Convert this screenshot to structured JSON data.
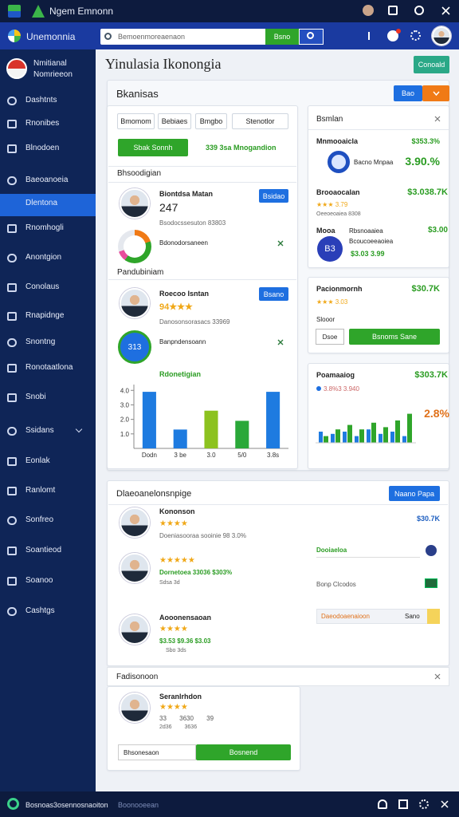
{
  "top_bar": {
    "title": "Ngem Emnonn"
  },
  "header": {
    "brand": "Unemonnia",
    "search_placeholder": "Bemoenmoreaenaon",
    "search_button": "Bsno"
  },
  "sidebar": {
    "profile": {
      "name": "Nmitianal",
      "subtitle": "Nomrieeon"
    },
    "items": [
      "Dashtnts",
      "Rnonibes",
      "Blnodoen",
      "Baeoanoeia",
      "Dlentona",
      "Rnomhogli",
      "Anontgion",
      "Conolaus",
      "Rnapidnge",
      "Snontng",
      "Ronotaatlona",
      "Snobi",
      "Ssidans",
      "Eonlak",
      "Ranlomt",
      "Sonfreo",
      "Soantieod",
      "Soanoo",
      "Cashtgs"
    ]
  },
  "main": {
    "title": "Yinulasia Ikonongia",
    "button": "Conoald"
  },
  "section": {
    "title": "Bkanisas",
    "button_primary": "Bao",
    "filters": [
      "Bmomom",
      "Bebiaes",
      "Bmgbo",
      "Stenotlor"
    ],
    "action_button": "Sbak Sonnh",
    "action_text": "339 3sa Mnogandion",
    "group1": {
      "title": "Bhsoodigian",
      "name": "Biontdsa Matan",
      "value": "247",
      "button": "Bsidao",
      "meta": "Bsodocssesuton 83803",
      "row_label": "Bdonodorsaneen"
    },
    "group2": {
      "title": "Pandubiniam",
      "name": "Roecoo Isntan",
      "rating": "94★★★",
      "button": "Bsano",
      "meta": "Danosonsorasacs 33969",
      "badge": "313",
      "row_label": "Banpndensoann"
    },
    "bar_chart": {
      "title": "Rdonetigian",
      "categories": [
        "Dodn",
        "3 be",
        "3.0",
        "5/0",
        "3.8s"
      ],
      "values": [
        3.9,
        1.3,
        2.6,
        1.9,
        3.9
      ],
      "colors": [
        "#1e7be0",
        "#1e7be0",
        "#8cc21f",
        "#2aa839",
        "#1e7be0"
      ],
      "ylim": [
        0,
        4.4
      ],
      "yticks": [
        {
          "value": 1,
          "label": "1.0"
        },
        {
          "value": 2,
          "label": "2.0"
        },
        {
          "value": 3,
          "label": "3.0"
        },
        {
          "value": 4,
          "label": "4.0"
        }
      ]
    }
  },
  "right_cards": {
    "summary": {
      "title": "Bsmlan",
      "row1_label": "Mnmooaicla",
      "row1_value": "$353.3%",
      "row2_label": "Bacno Mnpaa",
      "row2_value": "3.90.%",
      "row3_label": "Brooaocalan",
      "row3_value": "$3.038.7K",
      "row3_rating": "★★★ 3.79",
      "row3_meta": "Oeeoeoaiea 8308",
      "row4_label": "Mooa",
      "row4_sub": "Rbsnoaaiea",
      "row4_value": "$3.00",
      "badge": "B3",
      "row4_meta": "Bcoucoeeaoiea",
      "row4_figures": "$3.03 3.99"
    },
    "purchase": {
      "title": "Pacionmornh",
      "value": "$30.7K",
      "rating": "★★★ 3.03",
      "label": "Slooor",
      "input": "Dsoe",
      "button": "Bsnoms Sane"
    },
    "growth": {
      "title": "Poamaaiog",
      "value": "$303.7K",
      "meta": "3.8%3 3.940",
      "change": "2.8%",
      "green_values": [
        0.3,
        0.6,
        0.8,
        0.6,
        0.9,
        0.7,
        1.0,
        1.3
      ],
      "blue_values": [
        0.5,
        0.4,
        0.5,
        0.3,
        0.6,
        0.4,
        0.5,
        0.3
      ],
      "ylim": [
        0,
        2
      ]
    }
  },
  "panel2": {
    "title": "Dlaeoanelonsnpige",
    "button": "Naano Papa",
    "value": "$30.7K",
    "rows": [
      {
        "name": "Kononson",
        "rating": "★★★★",
        "meta": "Doeniasooraa sooinie 98 3.0%"
      },
      {
        "rating": "★★★★★",
        "meta": "Dornetoea 33036 $303%",
        "sub": "Sdsa 3d"
      },
      {
        "name": "Aooonensaoan",
        "rating": "★★★★",
        "meta": "$3.53 $9.36 $3.03",
        "sub": "Sbo 3ds"
      }
    ],
    "right_label": "Dooiaeloa",
    "right_label2": "Bonp Clcodos",
    "filter_label": "Daeodoaenaioon",
    "filter_value": "Sano"
  },
  "panel3": {
    "title": "Fadisonoon",
    "name": "Seranlrhdon",
    "rating": "★★★★",
    "meta": "33 3630 39",
    "sub": "2d36 3636",
    "input": "Bhsonesaon",
    "button": "Bosnend"
  },
  "bottom_bar": {
    "left": "Bosnoas3osennosnaoiton",
    "status": "Boonooeean"
  }
}
